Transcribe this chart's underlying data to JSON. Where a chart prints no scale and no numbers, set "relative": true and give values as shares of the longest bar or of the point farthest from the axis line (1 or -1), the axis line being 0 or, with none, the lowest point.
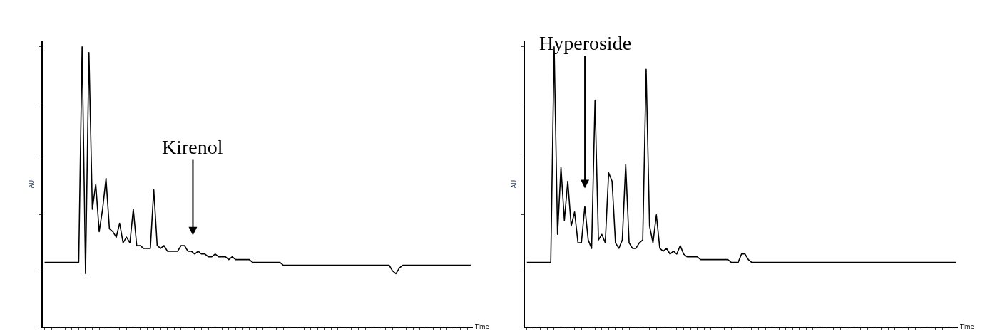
{
  "chart_data": [
    {
      "type": "line",
      "relative": true,
      "ylabel": "AU",
      "xlabel": "Time",
      "tick_labels": false,
      "color": "#000000",
      "annotations": [
        "Kirenol"
      ],
      "categories": [
        null,
        null,
        null,
        null,
        null,
        null,
        null,
        null,
        null,
        null,
        null,
        null,
        null,
        null,
        null,
        null,
        null,
        null,
        null,
        null,
        null,
        null,
        null,
        null,
        null,
        null,
        null,
        null,
        null,
        null,
        null,
        null,
        null,
        null,
        null,
        null,
        null,
        null,
        null,
        null,
        null,
        null,
        null,
        null,
        null,
        null,
        null,
        null,
        null,
        null,
        null,
        null,
        null,
        null,
        null,
        null,
        null,
        null,
        null,
        null,
        null,
        null,
        null,
        null,
        null,
        null,
        null,
        null,
        null,
        null,
        null,
        null,
        null,
        null,
        null,
        null,
        null,
        null,
        null,
        null,
        null,
        null,
        null,
        null,
        null,
        null,
        null,
        null,
        null,
        null,
        null,
        null,
        null,
        null,
        null,
        null,
        null,
        null,
        null,
        null,
        null,
        null,
        null,
        null,
        null,
        null,
        null,
        null,
        null,
        null,
        null,
        null,
        null,
        null,
        null,
        null,
        null,
        null,
        null,
        null,
        null,
        null,
        null,
        null,
        null,
        null
      ],
      "values": [
        0.23,
        0.23,
        0.23,
        0.23,
        0.23,
        0.23,
        0.23,
        0.23,
        0.23,
        0.23,
        0.23,
        1.0,
        0.19,
        0.98,
        0.42,
        0.51,
        0.34,
        0.42,
        0.53,
        0.35,
        0.34,
        0.32,
        0.37,
        0.3,
        0.32,
        0.3,
        0.42,
        0.29,
        0.29,
        0.28,
        0.28,
        0.28,
        0.49,
        0.29,
        0.28,
        0.29,
        0.27,
        0.27,
        0.27,
        0.27,
        0.29,
        0.29,
        0.27,
        0.27,
        0.26,
        0.27,
        0.26,
        0.26,
        0.25,
        0.25,
        0.26,
        0.25,
        0.25,
        0.25,
        0.24,
        0.25,
        0.24,
        0.24,
        0.24,
        0.24,
        0.24,
        0.23,
        0.23,
        0.23,
        0.23,
        0.23,
        0.23,
        0.23,
        0.23,
        0.23,
        0.22,
        0.22,
        0.22,
        0.22,
        0.22,
        0.22,
        0.22,
        0.22,
        0.22,
        0.22,
        0.22,
        0.22,
        0.22,
        0.22,
        0.22,
        0.22,
        0.22,
        0.22,
        0.22,
        0.22,
        0.22,
        0.22,
        0.22,
        0.22,
        0.22,
        0.22,
        0.22,
        0.22,
        0.22,
        0.22,
        0.22,
        0.22,
        0.2,
        0.19,
        0.21,
        0.22,
        0.22,
        0.22,
        0.22,
        0.22,
        0.22,
        0.22,
        0.22,
        0.22,
        0.22,
        0.22,
        0.22,
        0.22,
        0.22,
        0.22,
        0.22,
        0.22,
        0.22,
        0.22,
        0.22,
        0.22
      ]
    },
    {
      "type": "line",
      "relative": true,
      "ylabel": "AU",
      "xlabel": "Time",
      "tick_labels": false,
      "color": "#000000",
      "annotations": [
        "Hyperoside"
      ],
      "categories": [
        null,
        null,
        null,
        null,
        null,
        null,
        null,
        null,
        null,
        null,
        null,
        null,
        null,
        null,
        null,
        null,
        null,
        null,
        null,
        null,
        null,
        null,
        null,
        null,
        null,
        null,
        null,
        null,
        null,
        null,
        null,
        null,
        null,
        null,
        null,
        null,
        null,
        null,
        null,
        null,
        null,
        null,
        null,
        null,
        null,
        null,
        null,
        null,
        null,
        null,
        null,
        null,
        null,
        null,
        null,
        null,
        null,
        null,
        null,
        null,
        null,
        null,
        null,
        null,
        null,
        null,
        null,
        null,
        null,
        null,
        null,
        null,
        null,
        null,
        null,
        null,
        null,
        null,
        null,
        null,
        null,
        null,
        null,
        null,
        null,
        null,
        null,
        null,
        null,
        null,
        null,
        null,
        null,
        null,
        null,
        null,
        null,
        null,
        null,
        null,
        null,
        null,
        null,
        null,
        null,
        null,
        null,
        null,
        null,
        null,
        null,
        null,
        null,
        null,
        null,
        null,
        null,
        null,
        null,
        null,
        null,
        null,
        null,
        null,
        null,
        null,
        null
      ],
      "values": [
        0.23,
        0.23,
        0.23,
        0.23,
        0.23,
        0.23,
        0.23,
        0.23,
        1.0,
        0.33,
        0.57,
        0.38,
        0.52,
        0.36,
        0.41,
        0.3,
        0.3,
        0.43,
        0.31,
        0.28,
        0.81,
        0.31,
        0.33,
        0.3,
        0.55,
        0.52,
        0.3,
        0.28,
        0.31,
        0.58,
        0.3,
        0.28,
        0.28,
        0.3,
        0.31,
        0.92,
        0.36,
        0.3,
        0.4,
        0.28,
        0.27,
        0.28,
        0.26,
        0.27,
        0.26,
        0.29,
        0.26,
        0.25,
        0.25,
        0.25,
        0.25,
        0.24,
        0.24,
        0.24,
        0.24,
        0.24,
        0.24,
        0.24,
        0.24,
        0.24,
        0.23,
        0.23,
        0.23,
        0.26,
        0.26,
        0.24,
        0.23,
        0.23,
        0.23,
        0.23,
        0.23,
        0.23,
        0.23,
        0.23,
        0.23,
        0.23,
        0.23,
        0.23,
        0.23,
        0.23,
        0.23,
        0.23,
        0.23,
        0.23,
        0.23,
        0.23,
        0.23,
        0.23,
        0.23,
        0.23,
        0.23,
        0.23,
        0.23,
        0.23,
        0.23,
        0.23,
        0.23,
        0.23,
        0.23,
        0.23,
        0.23,
        0.23,
        0.23,
        0.23,
        0.23,
        0.23,
        0.23,
        0.23,
        0.23,
        0.23,
        0.23,
        0.23,
        0.23,
        0.23,
        0.23,
        0.23,
        0.23,
        0.23,
        0.23,
        0.23,
        0.23,
        0.23,
        0.23,
        0.23,
        0.23,
        0.23,
        0.23
      ]
    }
  ]
}
